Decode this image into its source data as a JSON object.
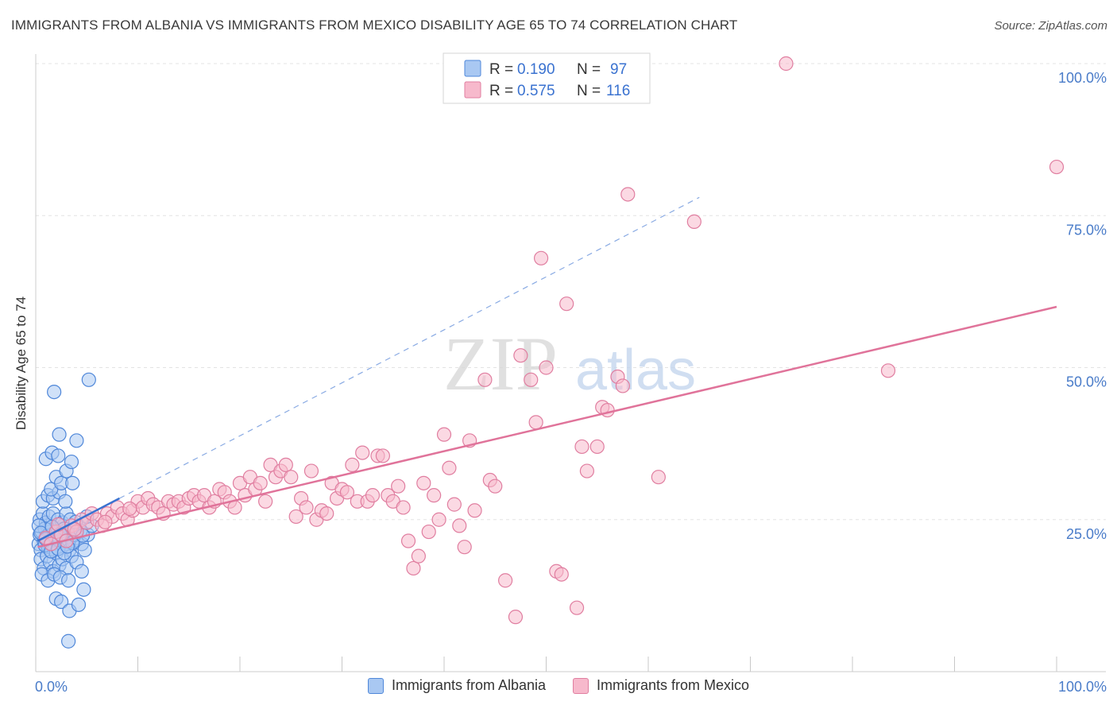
{
  "title": "IMMIGRANTS FROM ALBANIA VS IMMIGRANTS FROM MEXICO DISABILITY AGE 65 TO 74 CORRELATION CHART",
  "source": "Source: ZipAtlas.com",
  "watermark": {
    "zip": "ZIP",
    "atlas": "atlas"
  },
  "colors": {
    "albania_fill": "#a9c8f2",
    "albania_stroke": "#4f87d9",
    "albania_line": "#3a72d0",
    "mexico_fill": "#f7b9cc",
    "mexico_stroke": "#e07ea0",
    "mexico_line": "#e0739a",
    "axis_text": "#4a7cc9",
    "grid": "#e3e3e3"
  },
  "legend": {
    "albania": {
      "r_label": "R =",
      "r_value": "0.190",
      "n_label": "N =",
      "n_value": "97"
    },
    "mexico": {
      "r_label": "R =",
      "r_value": "0.575",
      "n_label": "N =",
      "n_value": "116"
    }
  },
  "bottom_legend": {
    "albania": "Immigrants from Albania",
    "mexico": "Immigrants from Mexico"
  },
  "chart_data": {
    "type": "scatter",
    "xlabel": "",
    "ylabel": "Disability Age 65 to 74",
    "xlim": [
      0,
      100
    ],
    "ylim": [
      0,
      100
    ],
    "x_tick_labels": [
      {
        "value": 0,
        "label": "0.0%"
      },
      {
        "value": 100,
        "label": "100.0%"
      }
    ],
    "y_tick_labels": [
      {
        "value": 25,
        "label": "25.0%"
      },
      {
        "value": 50,
        "label": "50.0%"
      },
      {
        "value": 75,
        "label": "75.0%"
      },
      {
        "value": 100,
        "label": "100.0%"
      }
    ],
    "y_gridlines": [
      25,
      50,
      75,
      100
    ],
    "series": [
      {
        "name": "Immigrants from Albania",
        "r": 0.19,
        "n": 97,
        "trend": {
          "x": [
            0.2,
            8.2
          ],
          "y": [
            21.5,
            28.5
          ]
        },
        "trend_extended": {
          "x": [
            8.2,
            65
          ],
          "y": [
            28.5,
            78
          ]
        },
        "points": [
          [
            0.3,
            21
          ],
          [
            0.4,
            22.5
          ],
          [
            0.5,
            20
          ],
          [
            0.6,
            23
          ],
          [
            0.8,
            21.5
          ],
          [
            1.0,
            22
          ],
          [
            1.1,
            24
          ],
          [
            1.2,
            20.5
          ],
          [
            1.4,
            23
          ],
          [
            1.5,
            21
          ],
          [
            1.6,
            22.5
          ],
          [
            1.8,
            20
          ],
          [
            2.0,
            21.5
          ],
          [
            2.1,
            23.5
          ],
          [
            2.3,
            22
          ],
          [
            2.5,
            20.5
          ],
          [
            2.7,
            24
          ],
          [
            2.9,
            21
          ],
          [
            3.1,
            22.5
          ],
          [
            3.3,
            20
          ],
          [
            3.5,
            23
          ],
          [
            3.7,
            21.5
          ],
          [
            4.0,
            22
          ],
          [
            4.2,
            24
          ],
          [
            4.5,
            21
          ],
          [
            4.8,
            20
          ],
          [
            5.1,
            22.5
          ],
          [
            5.5,
            24
          ],
          [
            0.4,
            25
          ],
          [
            0.7,
            26
          ],
          [
            1.0,
            24.5
          ],
          [
            1.3,
            25.5
          ],
          [
            1.7,
            26
          ],
          [
            2.2,
            25
          ],
          [
            2.6,
            24.5
          ],
          [
            3.0,
            26
          ],
          [
            3.4,
            25
          ],
          [
            0.5,
            18.5
          ],
          [
            0.8,
            17
          ],
          [
            1.1,
            19
          ],
          [
            1.4,
            18
          ],
          [
            1.7,
            16.5
          ],
          [
            2.0,
            19.5
          ],
          [
            2.3,
            17.5
          ],
          [
            2.6,
            18.5
          ],
          [
            3.0,
            17
          ],
          [
            3.5,
            19
          ],
          [
            4.0,
            18
          ],
          [
            4.5,
            16.5
          ],
          [
            0.6,
            16
          ],
          [
            1.2,
            15
          ],
          [
            1.8,
            16
          ],
          [
            2.4,
            15.5
          ],
          [
            3.2,
            15
          ],
          [
            0.7,
            28
          ],
          [
            1.2,
            29
          ],
          [
            1.7,
            28.5
          ],
          [
            2.3,
            29.5
          ],
          [
            2.9,
            28
          ],
          [
            1.5,
            30
          ],
          [
            2.0,
            32
          ],
          [
            2.5,
            31
          ],
          [
            3.0,
            33
          ],
          [
            3.6,
            31
          ],
          [
            1.0,
            35
          ],
          [
            1.6,
            36
          ],
          [
            2.2,
            35.5
          ],
          [
            3.5,
            34.5
          ],
          [
            4.0,
            38
          ],
          [
            2.3,
            39
          ],
          [
            1.8,
            46
          ],
          [
            5.2,
            48
          ],
          [
            2.0,
            12
          ],
          [
            2.5,
            11.5
          ],
          [
            3.3,
            10
          ],
          [
            4.2,
            11
          ],
          [
            4.7,
            13.5
          ],
          [
            3.2,
            5
          ],
          [
            0.9,
            23.5
          ],
          [
            1.9,
            22
          ],
          [
            2.8,
            23.5
          ],
          [
            3.8,
            22.5
          ],
          [
            0.3,
            24
          ],
          [
            0.9,
            20.8
          ],
          [
            1.5,
            19.8
          ],
          [
            2.2,
            20.2
          ],
          [
            2.8,
            19.5
          ],
          [
            3.6,
            21.2
          ],
          [
            4.4,
            23.2
          ],
          [
            5.0,
            25.5
          ],
          [
            0.5,
            22.8
          ],
          [
            1.0,
            21.8
          ],
          [
            1.6,
            23.8
          ],
          [
            2.4,
            22.6
          ],
          [
            3.1,
            20.6
          ],
          [
            3.9,
            24.6
          ],
          [
            4.6,
            22.4
          ]
        ]
      },
      {
        "name": "Immigrants from Mexico",
        "r": 0.575,
        "n": 116,
        "trend": {
          "x": [
            0.2,
            100
          ],
          "y": [
            20.5,
            60
          ]
        },
        "points": [
          [
            1.0,
            22
          ],
          [
            1.5,
            21
          ],
          [
            2.0,
            23
          ],
          [
            2.5,
            22.5
          ],
          [
            3.0,
            21.5
          ],
          [
            3.5,
            24
          ],
          [
            4.0,
            23
          ],
          [
            4.5,
            25
          ],
          [
            5.0,
            24.5
          ],
          [
            5.5,
            26
          ],
          [
            6.0,
            25
          ],
          [
            6.5,
            24
          ],
          [
            7.0,
            26
          ],
          [
            7.5,
            25.5
          ],
          [
            8.0,
            27
          ],
          [
            8.5,
            26
          ],
          [
            9.0,
            25
          ],
          [
            9.5,
            26.5
          ],
          [
            10.0,
            28
          ],
          [
            10.5,
            27
          ],
          [
            11.0,
            28.5
          ],
          [
            11.5,
            27.5
          ],
          [
            12.0,
            27
          ],
          [
            12.5,
            26
          ],
          [
            13.0,
            28
          ],
          [
            13.5,
            27.5
          ],
          [
            14.0,
            28
          ],
          [
            14.5,
            27
          ],
          [
            15.0,
            28.5
          ],
          [
            15.5,
            29
          ],
          [
            16.0,
            28
          ],
          [
            16.5,
            29
          ],
          [
            17.0,
            27
          ],
          [
            17.5,
            28
          ],
          [
            18.0,
            30
          ],
          [
            18.5,
            29.5
          ],
          [
            19.0,
            28
          ],
          [
            19.5,
            27
          ],
          [
            20.0,
            31
          ],
          [
            20.5,
            29
          ],
          [
            21.0,
            32
          ],
          [
            21.5,
            30
          ],
          [
            22.0,
            31
          ],
          [
            22.5,
            28
          ],
          [
            23.0,
            34
          ],
          [
            23.5,
            32
          ],
          [
            24.0,
            33
          ],
          [
            24.5,
            34
          ],
          [
            25.0,
            32
          ],
          [
            25.5,
            25.5
          ],
          [
            26.0,
            28.5
          ],
          [
            26.5,
            27
          ],
          [
            27.0,
            33
          ],
          [
            27.5,
            25
          ],
          [
            28.0,
            26.5
          ],
          [
            28.5,
            26
          ],
          [
            29.0,
            31
          ],
          [
            29.5,
            28.5
          ],
          [
            30.0,
            30
          ],
          [
            30.5,
            29.5
          ],
          [
            31.0,
            34
          ],
          [
            31.5,
            28
          ],
          [
            32.0,
            36
          ],
          [
            32.5,
            28
          ],
          [
            33.0,
            29
          ],
          [
            33.5,
            35.5
          ],
          [
            34.0,
            35.5
          ],
          [
            34.5,
            29
          ],
          [
            35.0,
            28
          ],
          [
            35.5,
            30.5
          ],
          [
            36.0,
            27
          ],
          [
            36.5,
            21.5
          ],
          [
            37.0,
            17
          ],
          [
            37.5,
            19
          ],
          [
            38.0,
            31
          ],
          [
            38.5,
            23
          ],
          [
            39.0,
            29
          ],
          [
            39.5,
            25
          ],
          [
            40.0,
            39
          ],
          [
            40.5,
            33.5
          ],
          [
            41.0,
            27.5
          ],
          [
            41.5,
            24
          ],
          [
            42.0,
            20.5
          ],
          [
            42.5,
            38
          ],
          [
            43.0,
            26.5
          ],
          [
            44.0,
            48
          ],
          [
            44.5,
            31.5
          ],
          [
            45.0,
            30.5
          ],
          [
            46.0,
            15
          ],
          [
            47.0,
            9
          ],
          [
            47.5,
            52
          ],
          [
            48.5,
            48
          ],
          [
            49.0,
            41
          ],
          [
            49.5,
            68
          ],
          [
            50.0,
            50
          ],
          [
            51.0,
            16.5
          ],
          [
            51.5,
            16
          ],
          [
            52.0,
            60.5
          ],
          [
            53.0,
            10.5
          ],
          [
            53.5,
            37
          ],
          [
            54.0,
            33
          ],
          [
            55.0,
            37
          ],
          [
            55.5,
            43.5
          ],
          [
            56.0,
            43
          ],
          [
            57.0,
            48.5
          ],
          [
            57.5,
            47
          ],
          [
            58.0,
            78.5
          ],
          [
            61.0,
            32
          ],
          [
            64.5,
            74
          ],
          [
            73.5,
            100
          ],
          [
            83.5,
            49.5
          ],
          [
            100,
            83
          ],
          [
            2.2,
            24.2
          ],
          [
            3.8,
            23.4
          ],
          [
            6.8,
            24.6
          ],
          [
            9.2,
            26.8
          ]
        ]
      }
    ]
  }
}
